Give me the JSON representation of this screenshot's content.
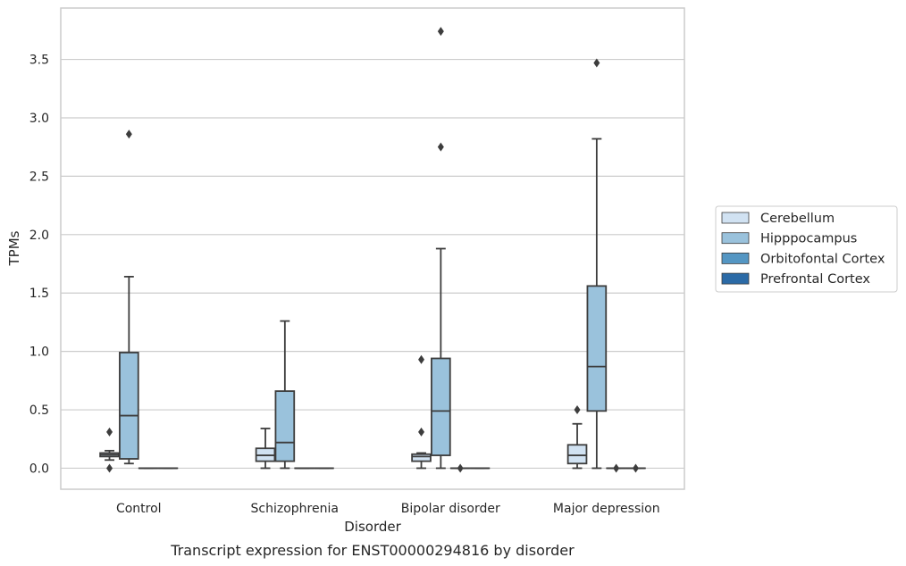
{
  "chart_data": {
    "type": "boxplot",
    "caption": "Transcript expression for ENST00000294816 by disorder",
    "xlabel": "Disorder",
    "ylabel": "TPMs",
    "ylim": [
      -0.18,
      3.94
    ],
    "yticks": [
      "0.0",
      "0.5",
      "1.0",
      "1.5",
      "2.0",
      "2.5",
      "3.0",
      "3.5"
    ],
    "ytick_values": [
      0,
      0.5,
      1.0,
      1.5,
      2.0,
      2.5,
      3.0,
      3.5
    ],
    "grid": "horizontal",
    "legend_position": "right",
    "categories": [
      "Control",
      "Schizophrenia",
      "Bipolar disorder",
      "Major depression"
    ],
    "series": [
      {
        "name": "Cerebellum",
        "color": "#d1e2f2",
        "boxes": [
          {
            "whislo": 0.07,
            "q1": 0.1,
            "med": 0.115,
            "q3": 0.13,
            "whishi": 0.15,
            "fliers": [
              0.31,
              0.0
            ]
          },
          {
            "whislo": 0.0,
            "q1": 0.06,
            "med": 0.11,
            "q3": 0.17,
            "whishi": 0.34,
            "fliers": []
          },
          {
            "whislo": 0.0,
            "q1": 0.06,
            "med": 0.1,
            "q3": 0.12,
            "whishi": 0.13,
            "fliers": [
              0.93,
              0.31
            ]
          },
          {
            "whislo": 0.0,
            "q1": 0.04,
            "med": 0.11,
            "q3": 0.2,
            "whishi": 0.38,
            "fliers": [
              0.5
            ]
          }
        ]
      },
      {
        "name": "Hipppocampus",
        "color": "#9ac2dc",
        "boxes": [
          {
            "whislo": 0.04,
            "q1": 0.08,
            "med": 0.45,
            "q3": 0.99,
            "whishi": 1.64,
            "fliers": [
              2.86
            ]
          },
          {
            "whislo": 0.0,
            "q1": 0.06,
            "med": 0.22,
            "q3": 0.66,
            "whishi": 1.26,
            "fliers": []
          },
          {
            "whislo": 0.0,
            "q1": 0.11,
            "med": 0.49,
            "q3": 0.94,
            "whishi": 1.88,
            "fliers": [
              3.74,
              2.75
            ]
          },
          {
            "whislo": 0.0,
            "q1": 0.49,
            "med": 0.87,
            "q3": 1.56,
            "whishi": 2.82,
            "fliers": [
              3.47
            ]
          }
        ]
      },
      {
        "name": "Orbitofontal Cortex",
        "color": "#5496c3",
        "boxes": [
          {
            "whislo": 0.0,
            "q1": 0.0,
            "med": 0.0,
            "q3": 0.0,
            "whishi": 0.0,
            "fliers": []
          },
          {
            "whislo": 0.0,
            "q1": 0.0,
            "med": 0.0,
            "q3": 0.0,
            "whishi": 0.0,
            "fliers": []
          },
          {
            "whislo": 0.0,
            "q1": 0.0,
            "med": 0.0,
            "q3": 0.0,
            "whishi": 0.0,
            "fliers": [
              0.0
            ]
          },
          {
            "whislo": 0.0,
            "q1": 0.0,
            "med": 0.0,
            "q3": 0.0,
            "whishi": 0.0,
            "fliers": [
              0.0
            ]
          }
        ]
      },
      {
        "name": "Prefrontal Cortex",
        "color": "#2b6aa6",
        "boxes": [
          {
            "whislo": 0.0,
            "q1": 0.0,
            "med": 0.0,
            "q3": 0.0,
            "whishi": 0.0,
            "fliers": []
          },
          {
            "whislo": 0.0,
            "q1": 0.0,
            "med": 0.0,
            "q3": 0.0,
            "whishi": 0.0,
            "fliers": []
          },
          {
            "whislo": 0.0,
            "q1": 0.0,
            "med": 0.0,
            "q3": 0.0,
            "whishi": 0.0,
            "fliers": []
          },
          {
            "whislo": 0.0,
            "q1": 0.0,
            "med": 0.0,
            "q3": 0.0,
            "whishi": 0.0,
            "fliers": [
              0.0
            ]
          }
        ]
      }
    ]
  }
}
